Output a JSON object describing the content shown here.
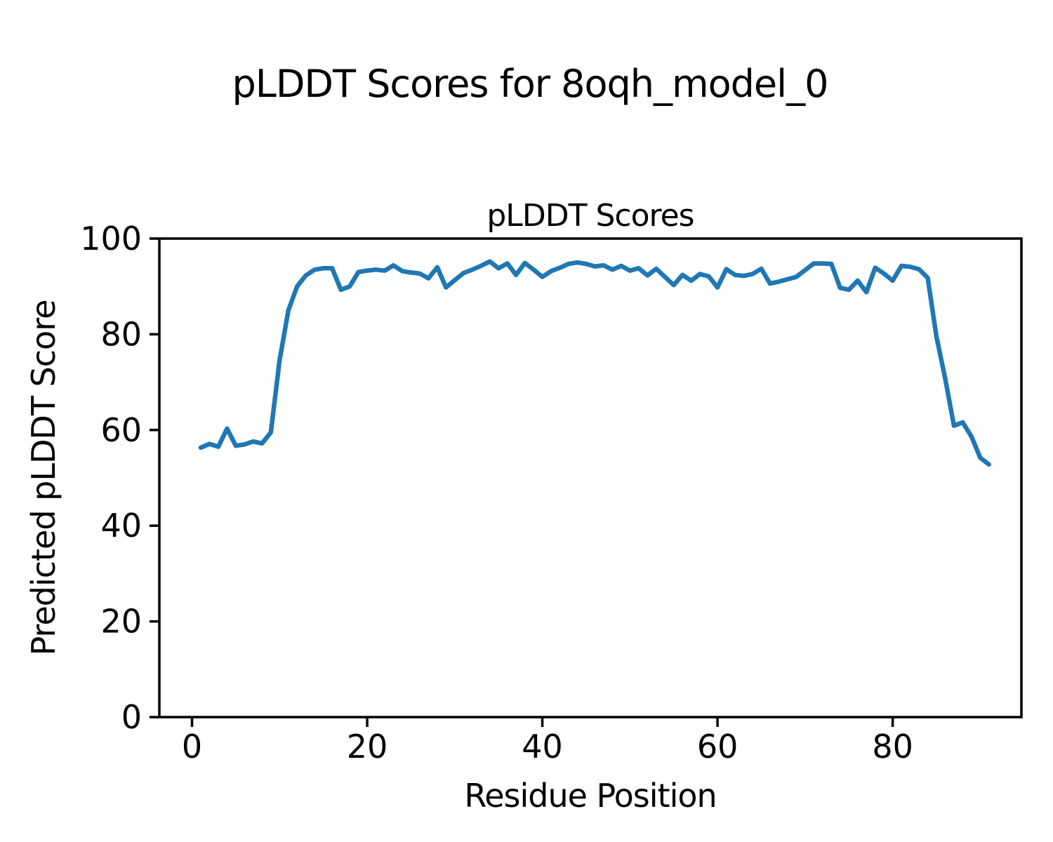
{
  "suptitle": "pLDDT Scores for 8oqh_model_0",
  "chart_data": {
    "type": "line",
    "title": "pLDDT Scores",
    "xlabel": "Residue Position",
    "ylabel": "Predicted pLDDT Score",
    "x_ticks": [
      0,
      20,
      40,
      60,
      80
    ],
    "y_ticks": [
      0,
      20,
      40,
      60,
      80,
      100
    ],
    "xlim": [
      -3.73,
      94.7
    ],
    "ylim": [
      0,
      100
    ],
    "grid": false,
    "legend": "none",
    "line_color": "#1f77b4",
    "axis_color": "#000000",
    "series": [
      {
        "name": "pLDDT",
        "x_start": 1,
        "values": [
          56.3,
          57.1,
          56.5,
          60.3,
          56.7,
          57.0,
          57.6,
          57.2,
          59.5,
          74.6,
          85.0,
          90.0,
          92.3,
          93.5,
          93.8,
          93.8,
          89.3,
          90.0,
          93.0,
          93.3,
          93.5,
          93.3,
          94.4,
          93.2,
          92.9,
          92.7,
          91.7,
          94.0,
          89.8,
          91.3,
          92.8,
          93.5,
          94.3,
          95.2,
          93.8,
          94.8,
          92.4,
          94.9,
          93.5,
          92.0,
          93.2,
          93.9,
          94.7,
          95.0,
          94.7,
          94.2,
          94.4,
          93.5,
          94.3,
          93.3,
          93.8,
          92.3,
          93.7,
          92.0,
          90.3,
          92.4,
          91.2,
          92.6,
          92.1,
          89.8,
          93.6,
          92.4,
          92.2,
          92.6,
          93.7,
          90.6,
          91.0,
          91.5,
          92.0,
          93.4,
          94.8,
          94.8,
          94.7,
          89.7,
          89.3,
          91.2,
          88.8,
          93.9,
          92.7,
          91.2,
          94.3,
          94.1,
          93.6,
          91.8,
          79.5,
          70.7,
          60.9,
          61.6,
          58.6,
          54.2,
          52.8
        ]
      }
    ]
  }
}
